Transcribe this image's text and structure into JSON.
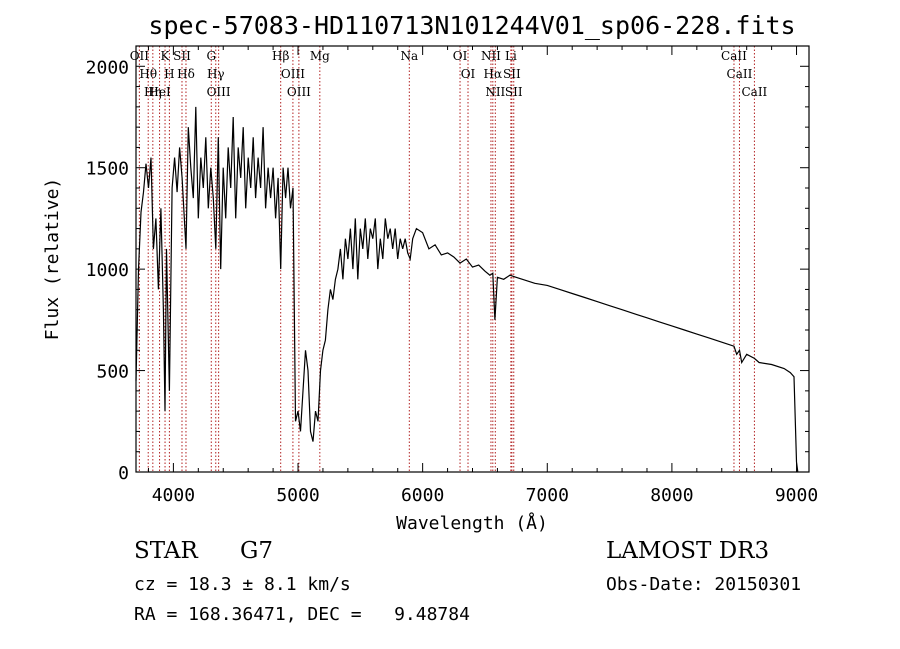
{
  "chart_data": {
    "type": "line",
    "title": "spec-57083-HD110713N101244V01_sp06-228.fits",
    "xlabel": "Wavelength (Å)",
    "ylabel": "Flux (relative)",
    "xlim": [
      3700,
      9100
    ],
    "ylim": [
      0,
      2100
    ],
    "x_ticks": [
      4000,
      5000,
      6000,
      7000,
      8000,
      9000
    ],
    "y_ticks": [
      0,
      500,
      1000,
      1500,
      2000
    ],
    "grid": false,
    "series": [
      {
        "color": "#000000",
        "x": [
          3700,
          3720,
          3740,
          3760,
          3780,
          3800,
          3820,
          3840,
          3860,
          3880,
          3900,
          3920,
          3933,
          3945,
          3968,
          3990,
          4010,
          4030,
          4050,
          4070,
          4101,
          4120,
          4140,
          4160,
          4180,
          4200,
          4220,
          4240,
          4260,
          4280,
          4300,
          4320,
          4340,
          4360,
          4380,
          4400,
          4420,
          4440,
          4460,
          4480,
          4500,
          4520,
          4540,
          4560,
          4580,
          4600,
          4620,
          4640,
          4660,
          4680,
          4700,
          4720,
          4740,
          4760,
          4780,
          4800,
          4820,
          4840,
          4861,
          4880,
          4900,
          4920,
          4940,
          4960,
          4980,
          5000,
          5020,
          5040,
          5060,
          5080,
          5100,
          5120,
          5140,
          5160,
          5180,
          5200,
          5220,
          5240,
          5260,
          5280,
          5300,
          5320,
          5340,
          5360,
          5380,
          5400,
          5420,
          5440,
          5460,
          5480,
          5500,
          5520,
          5540,
          5560,
          5580,
          5600,
          5620,
          5640,
          5660,
          5680,
          5700,
          5720,
          5740,
          5760,
          5780,
          5800,
          5820,
          5840,
          5860,
          5880,
          5900,
          5920,
          5950,
          6000,
          6050,
          6100,
          6150,
          6200,
          6250,
          6300,
          6350,
          6400,
          6450,
          6500,
          6540,
          6563,
          6580,
          6600,
          6650,
          6700,
          6750,
          6800,
          6900,
          7000,
          7100,
          7200,
          7300,
          7400,
          7500,
          7600,
          7700,
          7800,
          7900,
          8000,
          8100,
          8200,
          8300,
          8400,
          8498,
          8520,
          8542,
          8560,
          8600,
          8662,
          8700,
          8800,
          8900,
          8950,
          8980,
          9000,
          9010
        ],
        "values": [
          450,
          1000,
          1280,
          1380,
          1520,
          1400,
          1550,
          1100,
          1250,
          900,
          1300,
          800,
          300,
          1100,
          400,
          1400,
          1550,
          1380,
          1600,
          1450,
          1100,
          1700,
          1500,
          1350,
          1800,
          1250,
          1550,
          1400,
          1650,
          1300,
          1500,
          1350,
          1100,
          1650,
          1000,
          1500,
          1250,
          1600,
          1400,
          1750,
          1250,
          1600,
          1450,
          1700,
          1300,
          1550,
          1400,
          1650,
          1350,
          1550,
          1400,
          1700,
          1300,
          1500,
          1350,
          1500,
          1250,
          1450,
          1000,
          1500,
          1350,
          1500,
          1300,
          1400,
          250,
          300,
          200,
          400,
          600,
          500,
          200,
          150,
          300,
          250,
          500,
          600,
          650,
          800,
          900,
          850,
          950,
          1000,
          1100,
          950,
          1150,
          1050,
          1200,
          1000,
          1250,
          950,
          1200,
          1100,
          1250,
          1050,
          1200,
          1150,
          1250,
          1000,
          1150,
          1050,
          1250,
          1150,
          1200,
          1100,
          1200,
          1050,
          1150,
          1100,
          1150,
          1080,
          1050,
          1150,
          1200,
          1180,
          1100,
          1120,
          1070,
          1080,
          1060,
          1030,
          1050,
          1010,
          1020,
          990,
          970,
          980,
          750,
          960,
          950,
          970,
          960,
          950,
          930,
          920,
          900,
          880,
          860,
          840,
          820,
          800,
          780,
          760,
          740,
          720,
          700,
          680,
          660,
          640,
          620,
          580,
          600,
          540,
          580,
          560,
          540,
          530,
          510,
          490,
          470,
          50,
          0
        ]
      }
    ],
    "annotations": [
      {
        "label": "Hβ",
        "x": 4861
      },
      {
        "label": "Mg",
        "x": 5175
      },
      {
        "label": "Na",
        "x": 5893
      },
      {
        "label": "Hα",
        "x": 6563
      },
      {
        "label": "CaII",
        "x": 8498
      },
      {
        "label": "CaII",
        "x": 8542
      },
      {
        "label": "CaII",
        "x": 8662
      },
      {
        "label": "OII",
        "x": 3727
      },
      {
        "label": "Hθ",
        "x": 3798
      },
      {
        "label": "Hη",
        "x": 3835
      },
      {
        "label": "HeI",
        "x": 3889
      },
      {
        "label": "SII",
        "x": 4069
      },
      {
        "label": "K",
        "x": 3933
      },
      {
        "label": "H",
        "x": 3968
      },
      {
        "label": "Hδ",
        "x": 4101
      },
      {
        "label": "Hγ",
        "x": 4340
      },
      {
        "label": "G",
        "x": 4304
      },
      {
        "label": "OIII",
        "x": 4363
      },
      {
        "label": "OIII",
        "x": 4959
      },
      {
        "label": "OIII",
        "x": 5007
      },
      {
        "label": "OI",
        "x": 6300
      },
      {
        "label": "OI",
        "x": 6364
      },
      {
        "label": "NII",
        "x": 6548
      },
      {
        "label": "NII",
        "x": 6583
      },
      {
        "label": "SII",
        "x": 6716
      },
      {
        "label": "SII",
        "x": 6731
      },
      {
        "label": "Li",
        "x": 6708
      }
    ]
  },
  "info": {
    "object_class": "STAR",
    "subclass": "G7",
    "survey": "LAMOST DR3",
    "cz_line": "cz = 18.3 ± 8.1 km/s",
    "obs_date": "Obs-Date: 20150301",
    "coords": "RA = 168.36471, DEC =   9.48784"
  },
  "colors": {
    "line_marker": "#b22222",
    "spectrum": "#000000"
  }
}
